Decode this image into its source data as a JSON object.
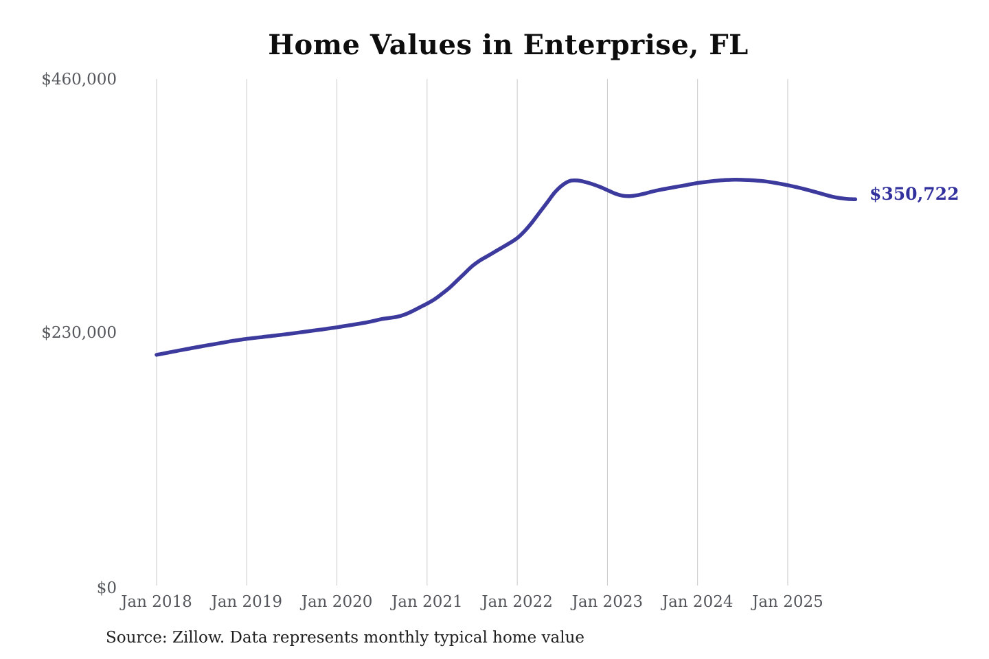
{
  "title": "Home Values in Enterprise, FL",
  "end_label": "$350,722",
  "source_note": "Source: Zillow. Data represents monthly typical home value",
  "colors": {
    "line": "#3d3a9e",
    "end_label": "#32319d",
    "grid": "#c9cacb",
    "tick_text": "#55575c",
    "title_text": "#0d0d0d",
    "source_text": "#1f1f1f",
    "background": "#ffffff"
  },
  "chart_data": {
    "type": "line",
    "title": "Home Values in Enterprise, FL",
    "xlabel": "",
    "ylabel": "",
    "ylim": [
      0,
      460000
    ],
    "y_tick_values": [
      0,
      230000,
      460000
    ],
    "y_tick_labels": [
      "$0",
      "$230,000",
      "$460,000"
    ],
    "x_tick_labels": [
      "Jan 2018",
      "Jan 2019",
      "Jan 2020",
      "Jan 2021",
      "Jan 2022",
      "Jan 2023",
      "Jan 2024",
      "Jan 2025"
    ],
    "x_start": "2018-01",
    "x_end": "2025-10",
    "x_interval": "monthly",
    "grid": "vertical-only",
    "legend": "none",
    "last_value": 350722,
    "last_value_label": "$350,722",
    "series": [
      {
        "name": "Monthly typical home value",
        "values": [
          209500,
          210800,
          212100,
          213400,
          214700,
          216000,
          217200,
          218400,
          219600,
          220800,
          222000,
          223000,
          224000,
          224800,
          225600,
          226400,
          227200,
          228000,
          228900,
          229800,
          230700,
          231600,
          232500,
          233500,
          234500,
          235600,
          236700,
          237800,
          239000,
          240500,
          242000,
          243000,
          244000,
          246000,
          249000,
          252500,
          256000,
          260000,
          265000,
          270500,
          277000,
          283500,
          290000,
          295000,
          299000,
          303000,
          307000,
          311000,
          315500,
          322000,
          330000,
          339000,
          348000,
          357000,
          363500,
          367400,
          367800,
          366500,
          364500,
          362000,
          359000,
          356000,
          354000,
          353600,
          354500,
          356000,
          357800,
          359300,
          360600,
          361800,
          363000,
          364300,
          365500,
          366400,
          367200,
          367900,
          368300,
          368500,
          368400,
          368100,
          367600,
          367000,
          366000,
          364800,
          363500,
          362000,
          360400,
          358600,
          356700,
          354800,
          353000,
          351800,
          351000,
          350722
        ]
      }
    ]
  }
}
